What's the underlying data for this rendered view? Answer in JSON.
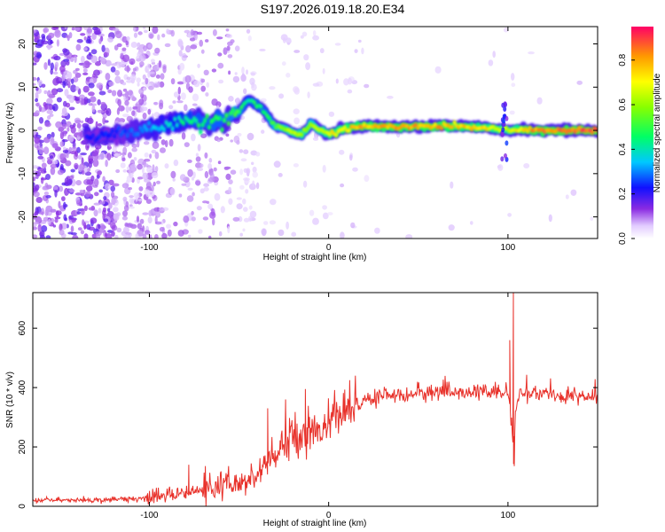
{
  "title": "S197.2026.019.18.20.E34",
  "colors": {
    "axis": "#000000",
    "snr_line": "#e8312a"
  },
  "chart_data": [
    {
      "type": "heatmap",
      "name": "spectrogram",
      "xlabel": "Height of straight line (km)",
      "ylabel": "Frequency (Hz)",
      "xlim": [
        -165,
        150
      ],
      "ylim": [
        -25,
        24
      ],
      "xticks": [
        -100,
        0,
        100
      ],
      "xtick_labels": [
        "-100",
        "0",
        "100"
      ],
      "yticks": [
        -20,
        -10,
        0,
        10,
        20
      ],
      "ytick_labels": [
        "-20",
        "-10",
        "0",
        "10",
        "20"
      ],
      "colorbar": {
        "label": "Normalized spectral amplitude",
        "range": [
          0,
          0.95
        ],
        "ticks": [
          0.0,
          0.2,
          0.4,
          0.6,
          0.8
        ],
        "tick_labels": [
          "0.0",
          "0.2",
          "0.4",
          "0.6",
          "0.8"
        ],
        "colormap": "rainbow"
      },
      "ridge": {
        "x": [
          -135,
          -120,
          -110,
          -100,
          -90,
          -80,
          -70,
          -60,
          -50,
          -45,
          -40,
          -35,
          -30,
          -25,
          -20,
          -15,
          -10,
          -5,
          0,
          10,
          20,
          40,
          60,
          80,
          95,
          100,
          110,
          130,
          150
        ],
        "freq": [
          -1.5,
          -1.0,
          -0.5,
          0.5,
          1.5,
          2.5,
          2.0,
          2.0,
          4.5,
          7.0,
          6.0,
          4.0,
          1.0,
          0.5,
          -0.5,
          -1.0,
          1.5,
          0.0,
          -1.0,
          0.5,
          1.0,
          0.8,
          1.0,
          0.8,
          0.3,
          0.0,
          0.2,
          0.0,
          0.0
        ],
        "amplitude": [
          0.25,
          0.25,
          0.3,
          0.35,
          0.4,
          0.45,
          0.5,
          0.5,
          0.55,
          0.45,
          0.5,
          0.5,
          0.6,
          0.65,
          0.7,
          0.7,
          0.65,
          0.7,
          0.75,
          0.8,
          0.85,
          0.85,
          0.85,
          0.8,
          0.75,
          0.7,
          0.85,
          0.9,
          0.95
        ]
      }
    },
    {
      "type": "line",
      "name": "snr",
      "xlabel": "Height of straight line (km)",
      "ylabel": "SNR (10 * v/v)",
      "xlim": [
        -165,
        150
      ],
      "ylim": [
        0,
        720
      ],
      "xticks": [
        -100,
        0,
        100
      ],
      "xtick_labels": [
        "-100",
        "0",
        "100"
      ],
      "yticks": [
        0,
        200,
        400,
        600
      ],
      "ytick_labels": [
        "0",
        "200",
        "400",
        "600"
      ],
      "trend": {
        "x": [
          -165,
          -120,
          -100,
          -80,
          -60,
          -50,
          -40,
          -30,
          -20,
          -10,
          0,
          10,
          20,
          30,
          50,
          80,
          100,
          102,
          103,
          104,
          106,
          120,
          150
        ],
        "y": [
          20,
          22,
          28,
          45,
          65,
          70,
          100,
          170,
          240,
          250,
          280,
          320,
          350,
          375,
          380,
          385,
          380,
          300,
          150,
          300,
          380,
          375,
          370
        ]
      },
      "noise_amplitude": [
        6,
        8,
        18,
        40,
        55,
        55,
        50,
        45,
        35,
        28
      ],
      "spikes": [
        {
          "x": -78,
          "y": 140
        },
        {
          "x": -34,
          "y": 330
        },
        {
          "x": -24,
          "y": 360
        },
        {
          "x": -13,
          "y": 395
        },
        {
          "x": 101,
          "y": 560
        },
        {
          "x": 103,
          "y": 720
        },
        {
          "x": 103.5,
          "y": 135
        }
      ]
    }
  ]
}
